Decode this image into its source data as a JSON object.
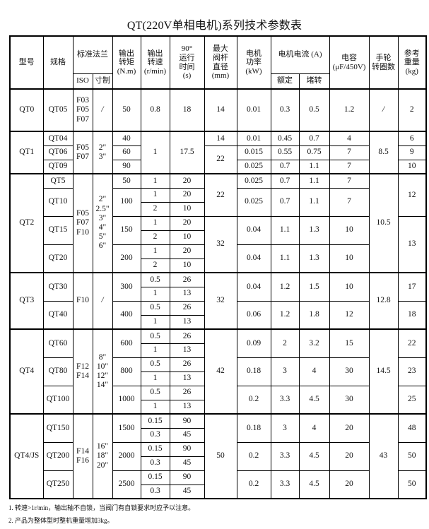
{
  "title": "QT(220V单相电机)系列技术参数表",
  "header": {
    "model": "型号",
    "spec": "规格",
    "flange": "标准法兰",
    "iso": "ISO",
    "inch": "寸制",
    "torque": "输出\n转矩\n(N.m)",
    "speed": "输出\n转速\n(r/min)",
    "time": "90°\n运行\n时间\n(s)",
    "stem": "最大\n阀杆\n直径\n(mm)",
    "power": "电机\n功率\n(kW)",
    "current": "电机电流 (A)",
    "rated": "额定",
    "stall": "堵转",
    "capacitor": "电容\n(μF/450V)",
    "turns": "手轮\n转圈数",
    "weight": "参考\n重量\n(kg)"
  },
  "groups": [
    {
      "rows": [
        [
          "QT0",
          "QT05",
          "F03\nF05\nF07",
          "/",
          "50",
          "0.8",
          "18",
          "14",
          "0.01",
          "0.3",
          "0.5",
          "1.2",
          "/",
          "2"
        ]
      ]
    },
    {
      "rows": [
        [
          "QT1",
          "QT04",
          "F05\nF07",
          "2\"\n3\"",
          "40",
          "1",
          "17.5",
          "14",
          "0.01",
          "0.45",
          "0.7",
          "4",
          "8.5",
          "6"
        ],
        [
          null,
          "QT06",
          null,
          null,
          "60",
          null,
          null,
          "22",
          "0.015",
          "0.55",
          "0.75",
          "7",
          null,
          "9"
        ],
        [
          null,
          "QT09",
          null,
          null,
          "90",
          null,
          null,
          null,
          "0.025",
          "0.7",
          "1.1",
          "7",
          null,
          "10"
        ]
      ]
    },
    {
      "rows": [
        [
          "QT2",
          "QT5",
          "F05\nF07\nF10",
          "2\"\n2.5\"\n3\"\n4\"\n5\"\n6\"",
          "50",
          "1",
          "20",
          "22",
          "0.025",
          "0.7",
          "1.1",
          "7",
          "10.5",
          "12"
        ],
        [
          null,
          "QT10",
          null,
          null,
          "100",
          "1",
          "20",
          null,
          "0.025",
          "0.7",
          "1.1",
          "7",
          null,
          null
        ],
        [
          null,
          null,
          null,
          null,
          null,
          "2",
          "10",
          null,
          null,
          null,
          null,
          null,
          null,
          null
        ],
        [
          null,
          "QT15",
          null,
          null,
          "150",
          "1",
          "20",
          "32",
          "0.04",
          "1.1",
          "1.3",
          "10",
          null,
          "13"
        ],
        [
          null,
          null,
          null,
          null,
          null,
          "2",
          "10",
          null,
          null,
          null,
          null,
          null,
          null,
          null
        ],
        [
          null,
          "QT20",
          null,
          null,
          "200",
          "1",
          "20",
          null,
          "0.04",
          "1.1",
          "1.3",
          "10",
          null,
          null
        ],
        [
          null,
          null,
          null,
          null,
          null,
          "2",
          "10",
          null,
          null,
          null,
          null,
          null,
          null,
          null
        ]
      ]
    },
    {
      "rows": [
        [
          "QT3",
          "QT30",
          "F10",
          "/",
          "300",
          "0.5",
          "26",
          "32",
          "0.04",
          "1.2",
          "1.5",
          "10",
          "12.8",
          "17"
        ],
        [
          null,
          null,
          null,
          null,
          null,
          "1",
          "13",
          null,
          null,
          null,
          null,
          null,
          null,
          null
        ],
        [
          null,
          "QT40",
          null,
          null,
          "400",
          "0.5",
          "26",
          null,
          "0.06",
          "1.2",
          "1.8",
          "12",
          null,
          "18"
        ],
        [
          null,
          null,
          null,
          null,
          null,
          "1",
          "13",
          null,
          null,
          null,
          null,
          null,
          null,
          null
        ]
      ]
    },
    {
      "rows": [
        [
          "QT4",
          "QT60",
          "F12\nF14",
          "8\"\n10\"\n12\"\n14\"",
          "600",
          "0.5",
          "26",
          "42",
          "0.09",
          "2",
          "3.2",
          "15",
          "14.5",
          "22"
        ],
        [
          null,
          null,
          null,
          null,
          null,
          "1",
          "13",
          null,
          null,
          null,
          null,
          null,
          null,
          null
        ],
        [
          null,
          "QT80",
          null,
          null,
          "800",
          "0.5",
          "26",
          null,
          "0.18",
          "3",
          "4",
          "30",
          null,
          "23"
        ],
        [
          null,
          null,
          null,
          null,
          null,
          "1",
          "13",
          null,
          null,
          null,
          null,
          null,
          null,
          null
        ],
        [
          null,
          "QT100",
          null,
          null,
          "1000",
          "0.5",
          "26",
          null,
          "0.2",
          "3.3",
          "4.5",
          "30",
          null,
          "25"
        ],
        [
          null,
          null,
          null,
          null,
          null,
          "1",
          "13",
          null,
          null,
          null,
          null,
          null,
          null,
          null
        ]
      ]
    },
    {
      "rows": [
        [
          "QT4/JS",
          "QT150",
          "F14\nF16",
          "16\"\n18\"\n20\"",
          "1500",
          "0.15",
          "90",
          "50",
          "0.18",
          "3",
          "4",
          "20",
          "43",
          "48"
        ],
        [
          null,
          null,
          null,
          null,
          null,
          "0.3",
          "45",
          null,
          null,
          null,
          null,
          null,
          null,
          null
        ],
        [
          null,
          "QT200",
          null,
          null,
          "2000",
          "0.15",
          "90",
          null,
          "0.2",
          "3.3",
          "4.5",
          "20",
          null,
          "50"
        ],
        [
          null,
          null,
          null,
          null,
          null,
          "0.3",
          "45",
          null,
          null,
          null,
          null,
          null,
          null,
          null
        ],
        [
          null,
          "QT250",
          null,
          null,
          "2500",
          "0.15",
          "90",
          null,
          "0.2",
          "3.3",
          "4.5",
          "20",
          null,
          "50"
        ],
        [
          null,
          null,
          null,
          null,
          null,
          "0.3",
          "45",
          null,
          null,
          null,
          null,
          null,
          null,
          null
        ]
      ]
    }
  ],
  "notes": [
    "1. 转速>1r/min，输出轴不自锁，当阀门有自锁要求时应予以注意。",
    "2. 产品为整体型时整机重量增加3kg。"
  ]
}
